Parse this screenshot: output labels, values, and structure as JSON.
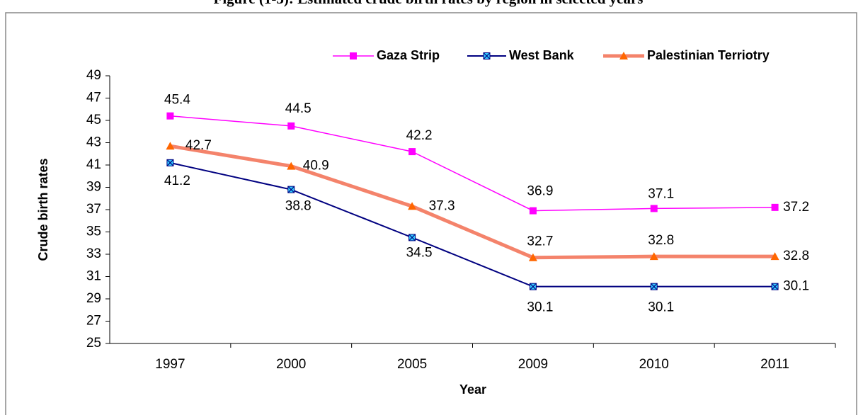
{
  "chart_data": {
    "type": "line",
    "title": "Figure (1-3): Estimated crude birth rates by region in selected years",
    "x_label": "Year",
    "y_label": "Crude birth rates",
    "categories": [
      "1997",
      "2000",
      "2005",
      "2009",
      "2010",
      "2011"
    ],
    "series": [
      {
        "name": "Gaza Strip",
        "color": "#FF00FF",
        "marker": "square",
        "values": [
          45.4,
          44.5,
          42.2,
          36.9,
          37.1,
          37.2
        ]
      },
      {
        "name": "West Bank",
        "color": "#000080",
        "marker": "x-square",
        "values": [
          41.2,
          38.8,
          34.5,
          30.1,
          30.1,
          30.1
        ]
      },
      {
        "name": "Palestinian Terriotry",
        "color": "#F4836B",
        "marker": "triangle",
        "marker_color": "#FF6600",
        "values": [
          42.7,
          40.9,
          37.3,
          32.7,
          32.8,
          32.8
        ]
      }
    ],
    "ylim": [
      25,
      49
    ],
    "yticks": [
      25,
      27,
      29,
      31,
      33,
      35,
      37,
      39,
      41,
      43,
      45,
      47,
      49
    ],
    "legend": "top",
    "grid": false
  }
}
